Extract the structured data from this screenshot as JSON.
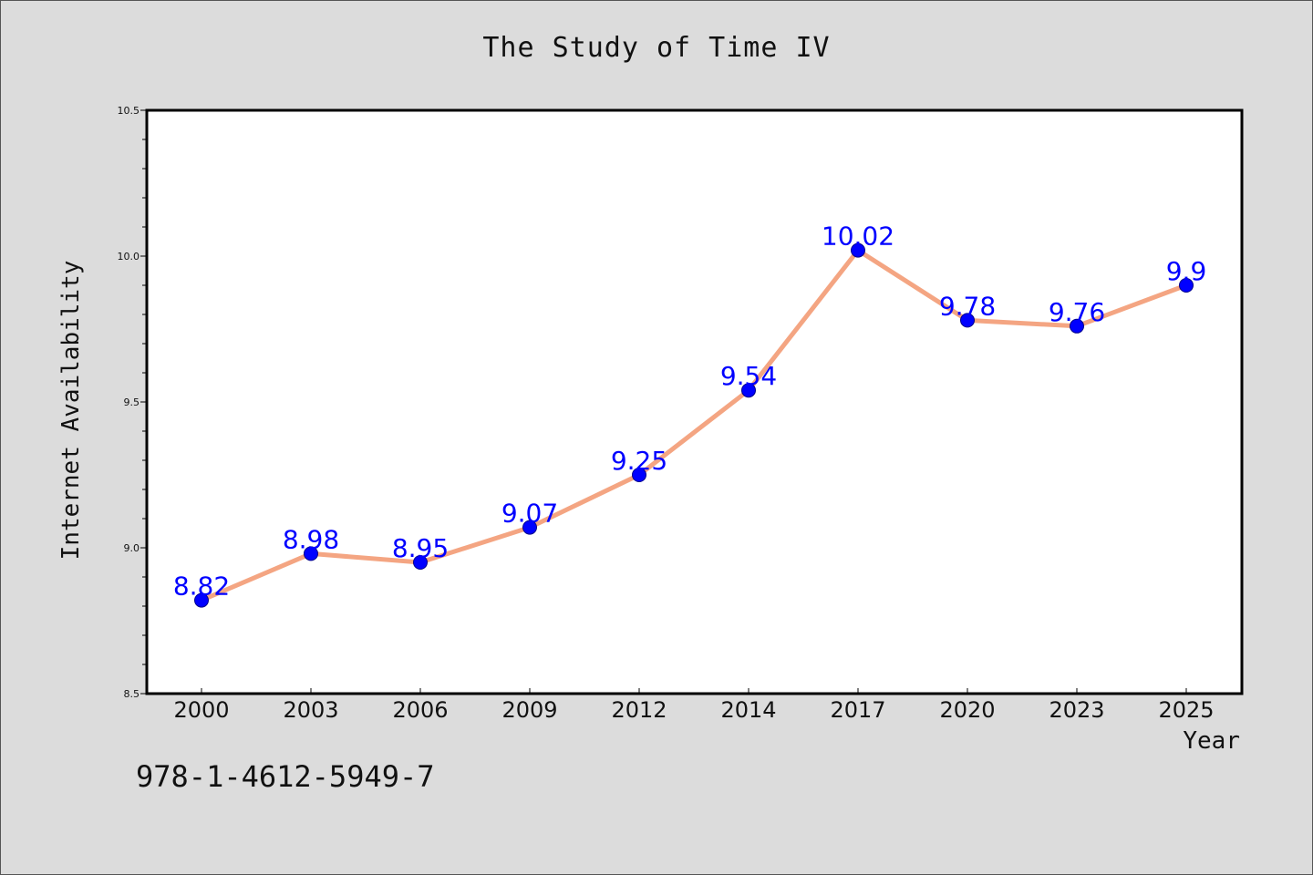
{
  "page": {
    "title": "The Study of Time IV",
    "isbn": "978-1-4612-5949-7"
  },
  "colors": {
    "page_background": "#dcdcdc",
    "plot_background": "#ffffff",
    "line": "#f4a582",
    "marker": "#0000ff",
    "data_label": "#0000ff",
    "text": "#111111"
  },
  "chart_data": {
    "type": "line",
    "title": "The Study of Time IV",
    "xlabel": "Year",
    "ylabel": "Internet Availability",
    "categories": [
      "2000",
      "2003",
      "2006",
      "2009",
      "2012",
      "2014",
      "2017",
      "2020",
      "2023",
      "2025"
    ],
    "values": [
      8.82,
      8.98,
      8.95,
      9.07,
      9.25,
      9.54,
      10.02,
      9.78,
      9.76,
      9.9
    ],
    "data_labels": [
      "8.82",
      "8.98",
      "8.95",
      "9.07",
      "9.25",
      "9.54",
      "10.02",
      "9.78",
      "9.76",
      "9.9"
    ],
    "ylim": [
      8.5,
      10.5
    ],
    "yticks": [
      "8.5",
      "9.0",
      "9.5",
      "10.0",
      "10.5"
    ],
    "grid": false,
    "marker": "circle"
  }
}
